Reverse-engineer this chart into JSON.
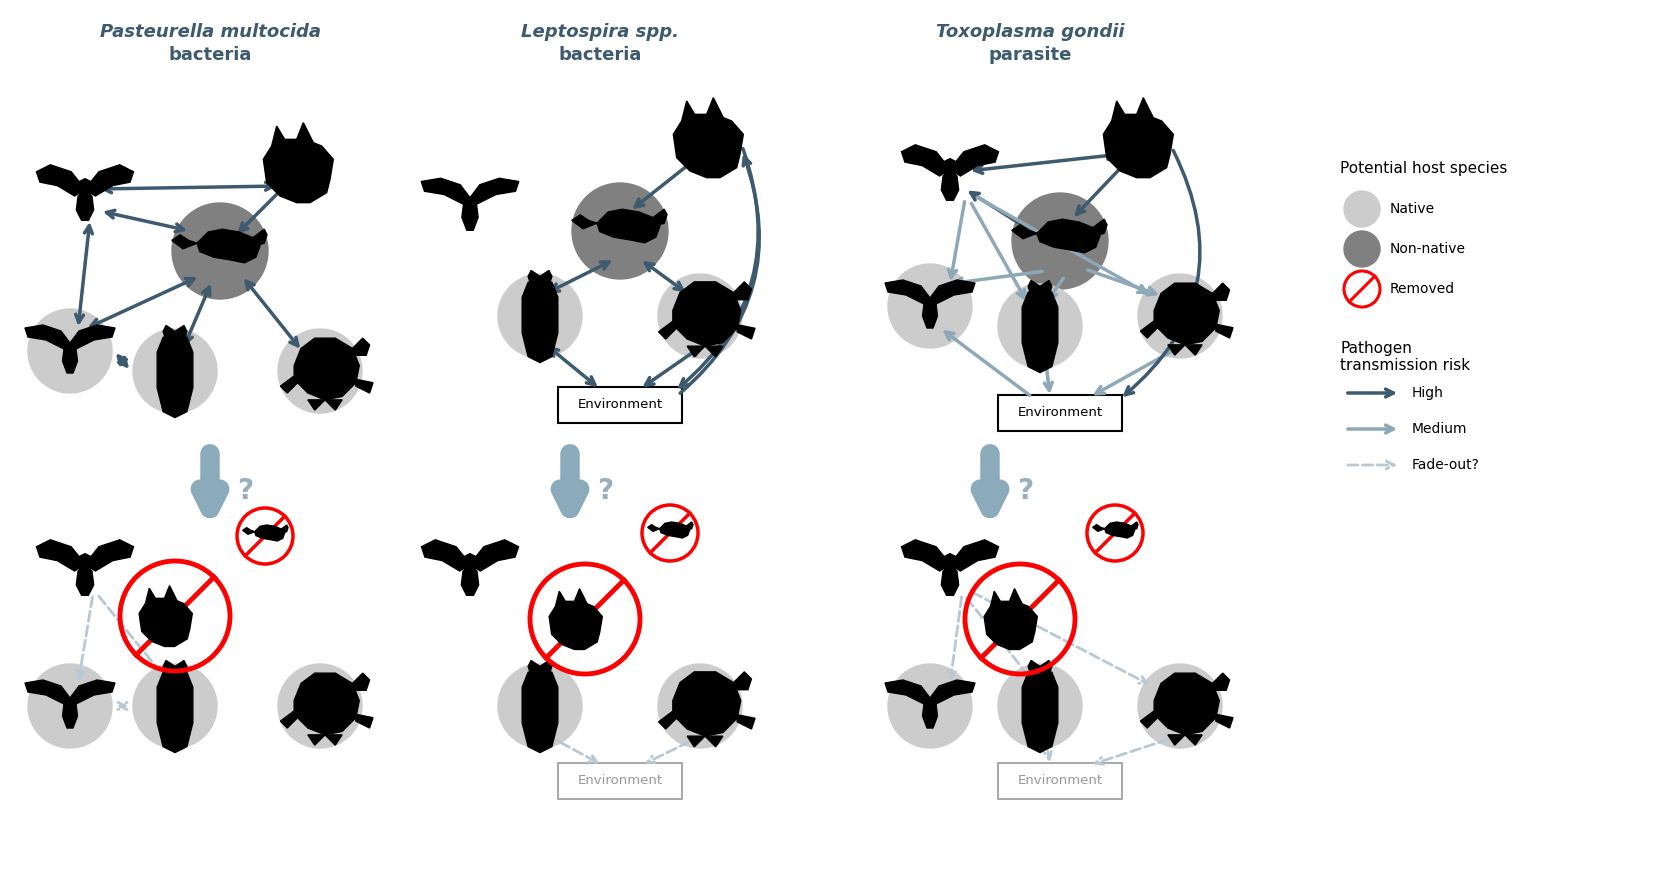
{
  "title1_line1": "Pasteurella multocida",
  "title1_line2": "bacteria",
  "title2_line1": "Leptospira spp.",
  "title2_line2": "bacteria",
  "title3_line1": "Toxoplasma gondii",
  "title3_line2": "parasite",
  "legend_host_title": "Potential host species",
  "legend_native": "Native",
  "legend_nonnative": "Non-native",
  "legend_removed": "Removed",
  "legend_path_title": "Pathogen\ntransmission risk",
  "legend_high": "High",
  "legend_medium": "Medium",
  "legend_fadeout": "Fade-out?",
  "color_dark_arrow": "#3d5a6e",
  "color_medium_arrow": "#8ea8b8",
  "color_fade_arrow": "#b8c8d4",
  "color_native_circle": "#cccccc",
  "color_nonnative_circle": "#808080",
  "color_text_title": "#3d5a6e",
  "bg_color": "#ffffff",
  "env_box_color_active": "#000000",
  "env_box_color_fade": "#aaaaaa"
}
